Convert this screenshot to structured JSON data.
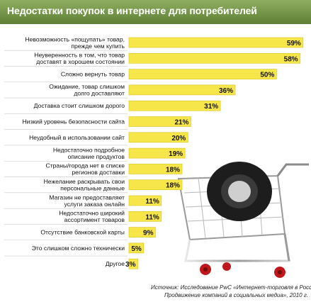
{
  "chart_data": {
    "type": "bar",
    "orientation": "horizontal",
    "title": "Недостатки покупок в интернете для потребителей",
    "categories": [
      [
        "Невозможность «пощупать» товар,",
        "прежде чем купить"
      ],
      [
        "Неуверенность в том, что товар",
        "доставят в хорошем состоянии"
      ],
      [
        "Сложно вернуть товар"
      ],
      [
        "Ожидание, товар слишком",
        "долго доставляют"
      ],
      [
        "Доставка стоит слишком дорого"
      ],
      [
        "Низкий уровень безопасности сайта"
      ],
      [
        "Неудобный в использовании сайт"
      ],
      [
        "Недостаточно подробное",
        "описание продуктов"
      ],
      [
        "Страны/города нет в списке",
        "регионов доставки"
      ],
      [
        "Нежелание раскрывать свои",
        "персональные данные"
      ],
      [
        "Магазин не предоставляет",
        "услуги заказа онлайн"
      ],
      [
        "Недостаточно широкий",
        "ассортимент товаров"
      ],
      [
        "Отсутствие банковской карты"
      ],
      [
        "Это слишком сложно технически"
      ],
      [
        "Другое"
      ]
    ],
    "values": [
      59,
      58,
      50,
      36,
      31,
      21,
      20,
      19,
      18,
      18,
      11,
      11,
      9,
      5,
      3
    ],
    "value_labels": [
      "59%",
      "58%",
      "50%",
      "36%",
      "31%",
      "21%",
      "20%",
      "19%",
      "18%",
      "18%",
      "11%",
      "11%",
      "9%",
      "5%",
      "3%"
    ],
    "xlim": [
      0,
      60
    ],
    "grid": false,
    "legend": "none",
    "bar_color": "#f7e64a",
    "bar_edge_color": "#d9c41a",
    "source_line1": "Источник: Исследование PwC «Интернет-торговля в России.",
    "source_line2": "Продвижение компаний в социальных медиа», 2010 г."
  },
  "colors": {
    "header": "#6f8f43",
    "bar": "#f7e64a",
    "separator": "#c9c9c9"
  },
  "icons": [
    "shopping-cart-icon"
  ]
}
